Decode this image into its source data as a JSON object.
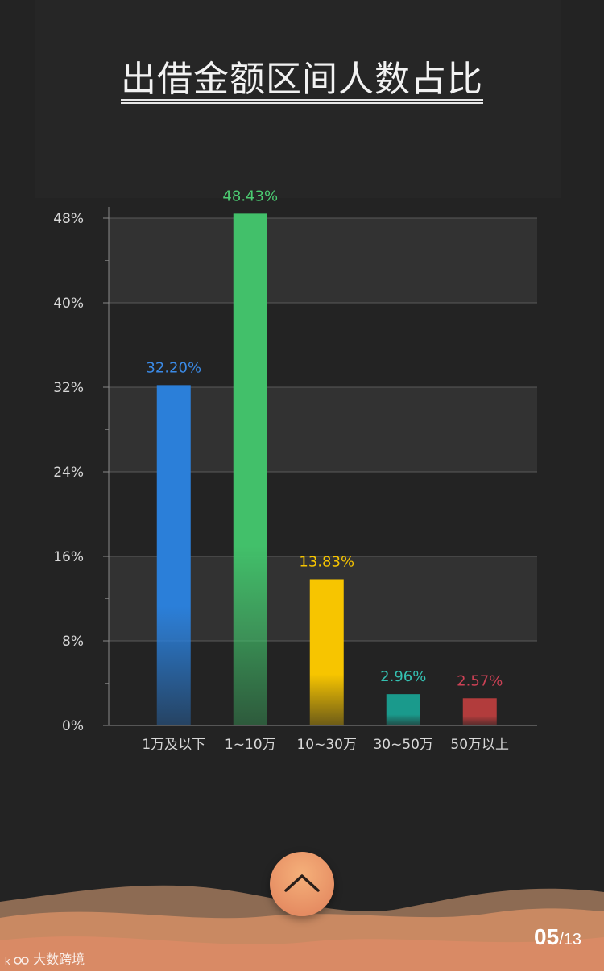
{
  "page": {
    "title": "出借金额区间人数占比"
  },
  "chart_data": {
    "type": "bar",
    "categories": [
      "1万及以下",
      "1~10万",
      "10~30万",
      "30~50万",
      "50万以上"
    ],
    "values": [
      32.2,
      48.43,
      13.83,
      2.96,
      2.57
    ],
    "value_labels": [
      "32.20%",
      "48.43%",
      "13.83%",
      "2.96%",
      "2.57%"
    ],
    "colors": [
      "#2b7fd9",
      "#42c06a",
      "#f7c500",
      "#1a9a8c",
      "#b23c3c"
    ],
    "label_colors": [
      "#3b8ae6",
      "#4ccc72",
      "#f7c500",
      "#34c1b2",
      "#cc4155"
    ],
    "ylim": [
      0,
      48
    ],
    "yticks": [
      0,
      8,
      16,
      24,
      32,
      40,
      48
    ],
    "ytick_labels": [
      "0%",
      "8%",
      "16%",
      "24%",
      "32%",
      "40%",
      "48%"
    ],
    "grid": true,
    "title": "出借金额区间人数占比",
    "xlabel": "",
    "ylabel": ""
  },
  "pagination": {
    "current": "05",
    "total": "/13"
  },
  "watermark": {
    "text": "大数跨境"
  },
  "controls": {
    "up_icon": "chevron-up-icon"
  }
}
